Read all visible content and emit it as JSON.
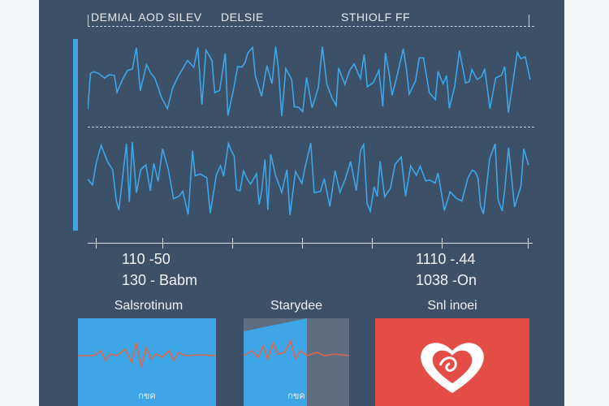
{
  "header": {
    "labels": [
      "DEMIAL AOD SILEV",
      "DELSIE",
      "STHIOLF FF"
    ]
  },
  "left_readout": {
    "line1": "110 -50",
    "line2": "130 - Babm"
  },
  "right_readout": {
    "line1": "1110 -.44",
    "line2": "1038 -On"
  },
  "cards": [
    {
      "title": "Salsrotinum",
      "caption": "กขค",
      "color": "#3ea6e6"
    },
    {
      "title": "Starydee",
      "caption": "กขค",
      "color": "#3ea6e6",
      "shade": "#5c6e80"
    },
    {
      "title": "Snl inoei",
      "color": "#e44c46",
      "icon": "heart-pulse-icon"
    }
  ],
  "colors": {
    "panel": "#3c5068",
    "wave": "#3ea6e6",
    "pulse": "#e0654a",
    "heart_card": "#e44c46"
  }
}
